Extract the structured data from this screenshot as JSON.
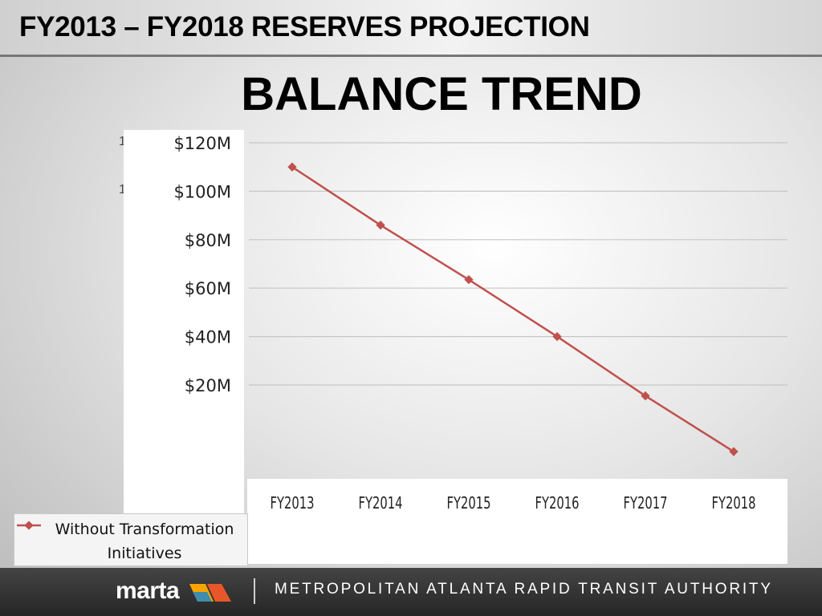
{
  "slide": {
    "title": "FY2013 – FY2018 RESERVES PROJECTION",
    "subtitle": "BALANCE TREND",
    "stray_glyphs": [
      "1",
      "1"
    ]
  },
  "chart_data": {
    "type": "line",
    "title": "BALANCE TREND",
    "categories": [
      "FY2013",
      "FY2014",
      "FY2015",
      "FY2016",
      "FY2017",
      "FY2018"
    ],
    "series": [
      {
        "name": "Without Transformation Initiatives",
        "values": [
          110,
          86,
          63.5,
          40,
          15.5,
          -7.5
        ],
        "color": "#c0504d"
      }
    ],
    "y_ticks": [
      20,
      40,
      60,
      80,
      100,
      120
    ],
    "y_tick_labels": [
      "$20M",
      "$40M",
      "$60M",
      "$80M",
      "$100M",
      "$120M"
    ],
    "ylim": [
      -20,
      120
    ],
    "grid": true,
    "legend_position": "bottom-left",
    "xlabel": "",
    "ylabel": ""
  },
  "footer": {
    "logo_text": "marta",
    "logo_mark": ".",
    "authority": "METROPOLITAN ATLANTA RAPID TRANSIT AUTHORITY"
  },
  "colors": {
    "series": "#c0504d",
    "gridline": "#c6c6c6",
    "footer_bg": "#333333"
  }
}
